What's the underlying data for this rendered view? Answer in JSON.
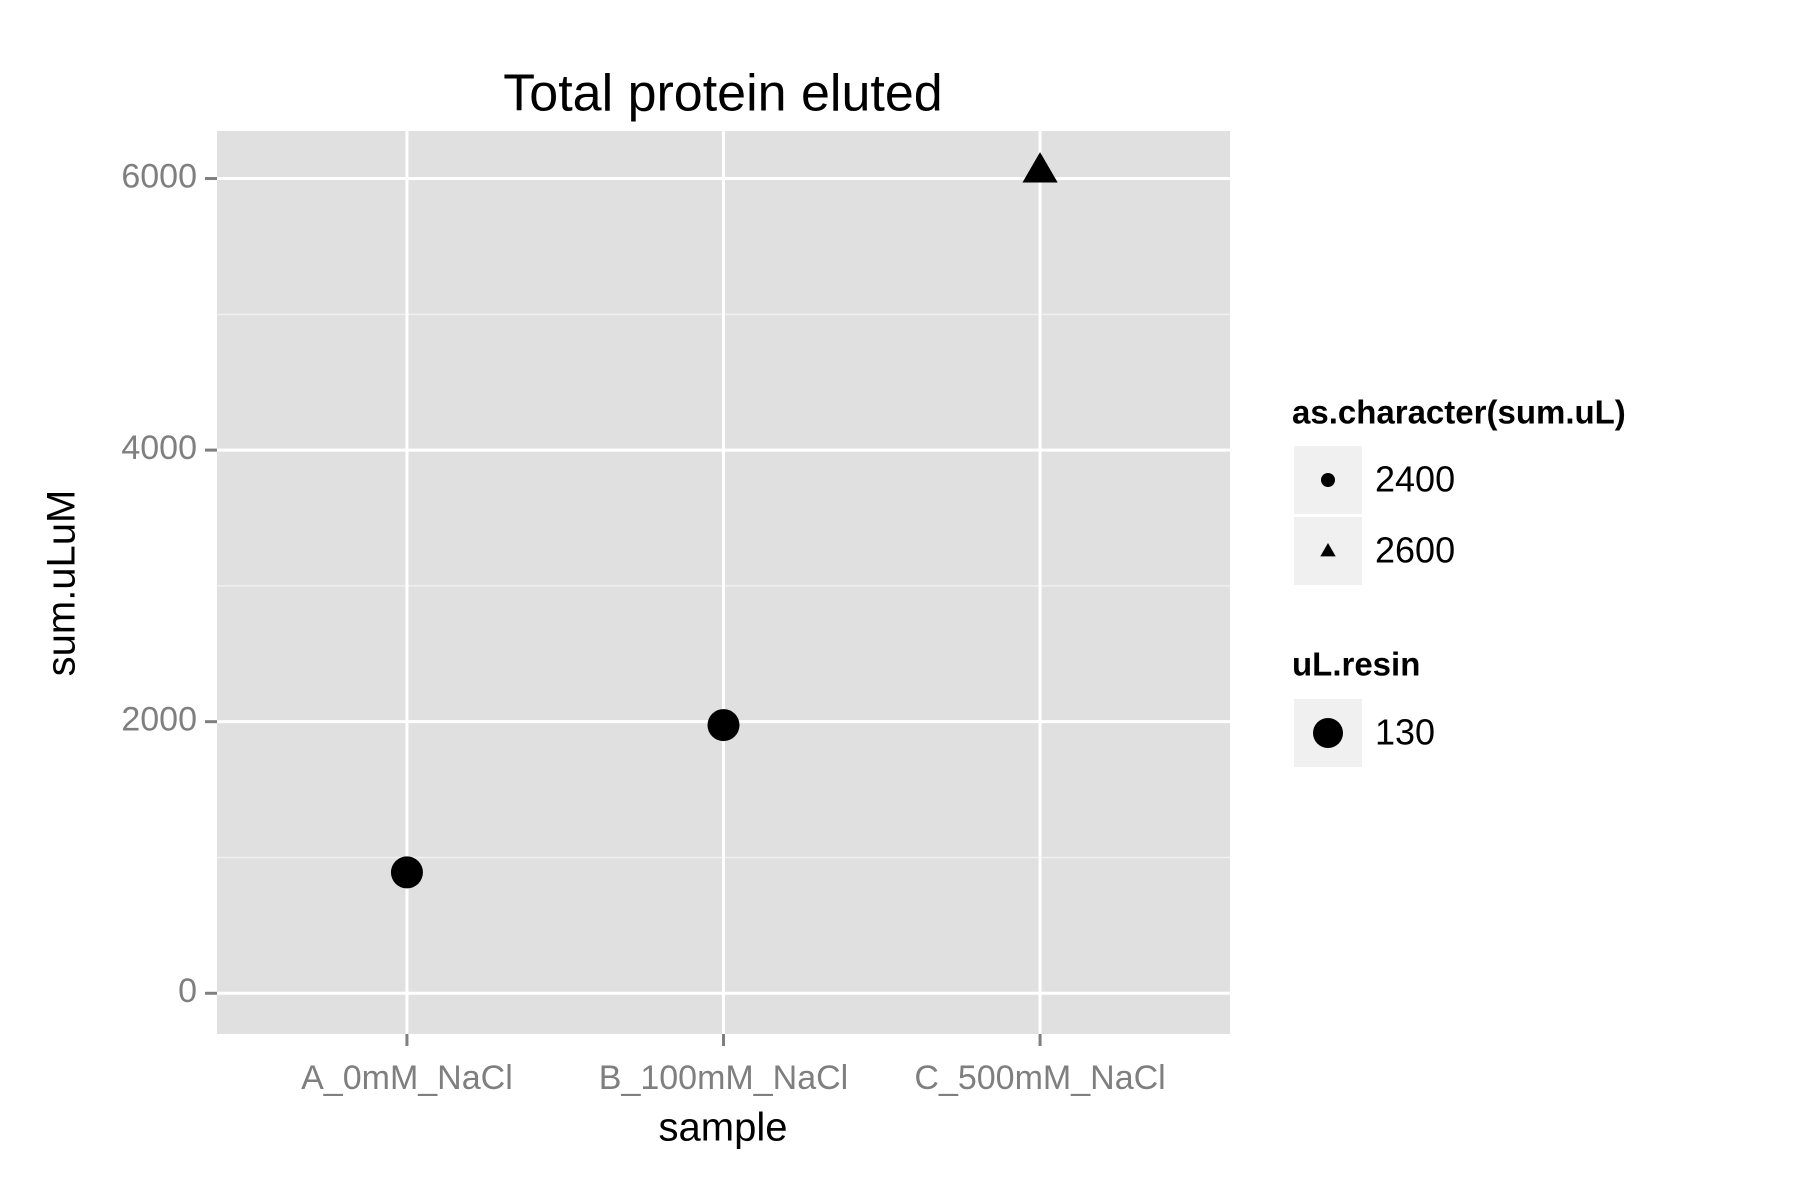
{
  "chart_data": {
    "type": "scatter",
    "title": "Total protein eluted",
    "x_label": "sample",
    "y_label": "sum.uLuM",
    "categories": [
      "A_0mM_NaCl",
      "B_100mM_NaCl",
      "C_500mM_NaCl"
    ],
    "series": [
      {
        "name": "2400",
        "shape": "circle",
        "color": "#000000",
        "values": [
          890,
          1975,
          null
        ]
      },
      {
        "name": "2600",
        "shape": "triangle",
        "color": "#000000",
        "values": [
          null,
          null,
          6060
        ]
      }
    ],
    "shape_legend_title": "as.character(sum.uL)",
    "size_legend": {
      "title": "uL.resin",
      "labels": [
        "130"
      ]
    },
    "ylim": [
      -300,
      6350
    ],
    "yticks": [
      0,
      2000,
      4000,
      6000
    ],
    "grid": true
  }
}
